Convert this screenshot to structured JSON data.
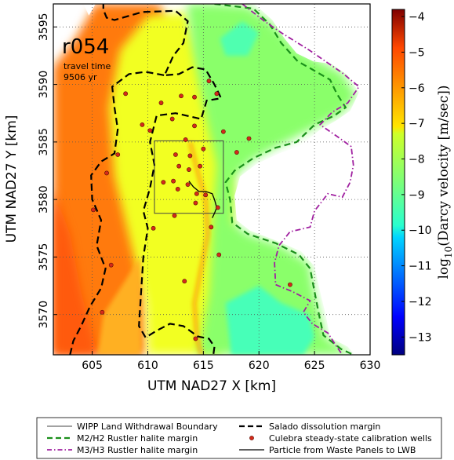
{
  "chart_data": {
    "type": "heatmap",
    "run_id": "r054",
    "annotation_line1": "travel time",
    "annotation_line2": "9506 yr",
    "xlabel": "UTM NAD27 X [km]",
    "ylabel": "UTM NAD27 Y [km]",
    "xlim": [
      601.5,
      630
    ],
    "ylim": [
      3566.5,
      3597
    ],
    "xticks": [
      605,
      610,
      615,
      620,
      625,
      630
    ],
    "yticks": [
      3570,
      3575,
      3580,
      3585,
      3590,
      3595
    ],
    "grid": true,
    "colorbar": {
      "label_prefix": "log",
      "label_sub": "10",
      "label_suffix": "(Darcy velocity [m/sec])",
      "range": [
        -13.5,
        -3.8
      ],
      "ticks": [
        -4,
        -5,
        -6,
        -7,
        -8,
        -9,
        -10,
        -11,
        -12,
        -13
      ],
      "colormap": "jet"
    },
    "wipp_boundary": {
      "x": [
        610.6,
        616.8
      ],
      "y": [
        3578.8,
        3585.1
      ]
    },
    "salado_margin": [
      [
        606.0,
        3597.2
      ],
      [
        606.0,
        3596.5
      ],
      [
        606.3,
        3595.8
      ],
      [
        607.0,
        3595.6
      ],
      [
        609.5,
        3596.3
      ],
      [
        612.5,
        3596.4
      ],
      [
        613.6,
        3595.5
      ],
      [
        613.2,
        3593.6
      ],
      [
        612.3,
        3592.5
      ],
      [
        611.5,
        3590.8
      ],
      [
        612.8,
        3590.9
      ],
      [
        614.0,
        3591.5
      ],
      [
        615.2,
        3591.3
      ],
      [
        616.0,
        3590.0
      ],
      [
        616.6,
        3588.8
      ],
      [
        615.3,
        3588.6
      ],
      [
        614.8,
        3587.0
      ],
      [
        612.5,
        3587.5
      ],
      [
        610.8,
        3587.3
      ],
      [
        610.2,
        3585.0
      ],
      [
        610.6,
        3583.0
      ],
      [
        610.2,
        3581.0
      ],
      [
        609.6,
        3579.0
      ],
      [
        610.0,
        3577.5
      ],
      [
        609.6,
        3575.0
      ],
      [
        609.4,
        3572.0
      ],
      [
        609.2,
        3569.0
      ],
      [
        609.8,
        3568.0
      ],
      [
        610.8,
        3568.6
      ],
      [
        612.0,
        3569.2
      ],
      [
        613.2,
        3569.0
      ],
      [
        614.5,
        3568.1
      ],
      [
        615.5,
        3567.9
      ],
      [
        616.0,
        3567.2
      ],
      [
        615.9,
        3566.5
      ]
    ],
    "salado_margin_west": [
      [
        603.0,
        3566.5
      ],
      [
        603.3,
        3567.7
      ],
      [
        604.0,
        3569.0
      ],
      [
        604.8,
        3570.7
      ],
      [
        605.8,
        3572.3
      ],
      [
        606.2,
        3574.0
      ],
      [
        605.4,
        3576.0
      ],
      [
        605.8,
        3578.2
      ],
      [
        605.0,
        3580.0
      ],
      [
        604.9,
        3582.1
      ],
      [
        605.8,
        3583.3
      ],
      [
        607.0,
        3584.0
      ],
      [
        607.3,
        3586.1
      ],
      [
        607.0,
        3588.0
      ],
      [
        606.8,
        3589.8
      ],
      [
        608.3,
        3590.9
      ],
      [
        609.8,
        3591.1
      ],
      [
        611.5,
        3590.8
      ]
    ],
    "m2h2_margin": [
      [
        616.0,
        3597.0
      ],
      [
        619.5,
        3596.6
      ],
      [
        621.0,
        3595.2
      ],
      [
        622.0,
        3593.6
      ],
      [
        623.5,
        3592.0
      ],
      [
        624.8,
        3591.3
      ],
      [
        626.4,
        3590.4
      ],
      [
        627.0,
        3589.2
      ],
      [
        627.8,
        3588.0
      ],
      [
        626.8,
        3587.3
      ],
      [
        625.0,
        3586.5
      ],
      [
        623.4,
        3585.0
      ],
      [
        621.5,
        3584.5
      ],
      [
        619.5,
        3583.6
      ],
      [
        617.8,
        3582.5
      ],
      [
        617.0,
        3581.5
      ],
      [
        617.4,
        3580.0
      ],
      [
        617.6,
        3578.0
      ],
      [
        619.0,
        3577.0
      ],
      [
        621.5,
        3576.2
      ],
      [
        623.6,
        3575.2
      ],
      [
        624.6,
        3574.0
      ],
      [
        625.0,
        3572.0
      ],
      [
        625.4,
        3570.0
      ],
      [
        625.8,
        3568.2
      ],
      [
        627.4,
        3567.0
      ],
      [
        628.5,
        3566.5
      ]
    ],
    "m3h3_margin": [
      [
        618.5,
        3597.0
      ],
      [
        620.5,
        3595.5
      ],
      [
        622.0,
        3594.5
      ],
      [
        624.5,
        3593.0
      ],
      [
        627.5,
        3591.0
      ],
      [
        629.0,
        3589.8
      ],
      [
        628.0,
        3588.4
      ],
      [
        626.6,
        3587.6
      ],
      [
        625.5,
        3586.5
      ],
      [
        627.0,
        3585.5
      ],
      [
        628.3,
        3584.6
      ],
      [
        628.5,
        3583.0
      ],
      [
        628.2,
        3581.5
      ],
      [
        627.5,
        3580.2
      ],
      [
        626.2,
        3580.5
      ],
      [
        625.0,
        3579.0
      ],
      [
        624.6,
        3577.6
      ],
      [
        622.8,
        3577.2
      ],
      [
        621.8,
        3576.0
      ],
      [
        621.4,
        3574.5
      ],
      [
        621.5,
        3572.6
      ],
      [
        623.0,
        3572.0
      ],
      [
        624.6,
        3571.2
      ],
      [
        624.0,
        3570.2
      ],
      [
        624.8,
        3569.2
      ],
      [
        626.2,
        3568.4
      ],
      [
        627.0,
        3567.2
      ],
      [
        627.5,
        3566.5
      ]
    ],
    "particle_path": [
      [
        613.7,
        3581.6
      ],
      [
        614.1,
        3581.1
      ],
      [
        614.6,
        3580.7
      ],
      [
        615.2,
        3580.7
      ],
      [
        615.8,
        3580.5
      ],
      [
        616.0,
        3580.0
      ],
      [
        616.2,
        3579.3
      ],
      [
        616.0,
        3578.8
      ],
      [
        615.8,
        3578.4
      ]
    ],
    "wells": [
      [
        608.0,
        3589.2
      ],
      [
        611.2,
        3588.4
      ],
      [
        613.0,
        3589.0
      ],
      [
        614.2,
        3588.9
      ],
      [
        615.5,
        3590.3
      ],
      [
        616.2,
        3589.2
      ],
      [
        609.5,
        3586.5
      ],
      [
        610.2,
        3586.0
      ],
      [
        612.2,
        3587.0
      ],
      [
        614.2,
        3586.4
      ],
      [
        616.8,
        3585.9
      ],
      [
        619.1,
        3585.3
      ],
      [
        618.0,
        3584.1
      ],
      [
        613.4,
        3585.2
      ],
      [
        612.5,
        3583.9
      ],
      [
        613.8,
        3583.8
      ],
      [
        615.0,
        3584.4
      ],
      [
        612.8,
        3582.9
      ],
      [
        613.7,
        3582.6
      ],
      [
        614.7,
        3582.9
      ],
      [
        611.4,
        3581.5
      ],
      [
        612.3,
        3581.6
      ],
      [
        613.6,
        3581.3
      ],
      [
        612.7,
        3580.9
      ],
      [
        614.4,
        3580.5
      ],
      [
        615.2,
        3580.4
      ],
      [
        616.3,
        3579.3
      ],
      [
        612.4,
        3578.6
      ],
      [
        614.3,
        3579.7
      ],
      [
        605.1,
        3579.1
      ],
      [
        606.3,
        3582.3
      ],
      [
        607.3,
        3583.9
      ],
      [
        610.5,
        3577.5
      ],
      [
        615.7,
        3577.6
      ],
      [
        616.4,
        3575.2
      ],
      [
        606.7,
        3574.3
      ],
      [
        613.3,
        3572.9
      ],
      [
        605.9,
        3570.2
      ],
      [
        614.3,
        3567.9
      ],
      [
        622.8,
        3572.6
      ]
    ],
    "legend": [
      "WIPP Land Withdrawal Boundary",
      "Salado dissolution margin",
      "M2/H2 Rustler halite margin",
      "Culebra steady-state calibration wells",
      "M3/H3 Rustler halite margin",
      "Particle from Waste Panels to LWB"
    ],
    "colors": {
      "salado": "#000000",
      "m2h2": "#1a8f1a",
      "m3h3": "#a020a0",
      "well_fill": "#d42a1a",
      "well_edge": "#5a0e05",
      "outside": "#ffffff"
    }
  }
}
